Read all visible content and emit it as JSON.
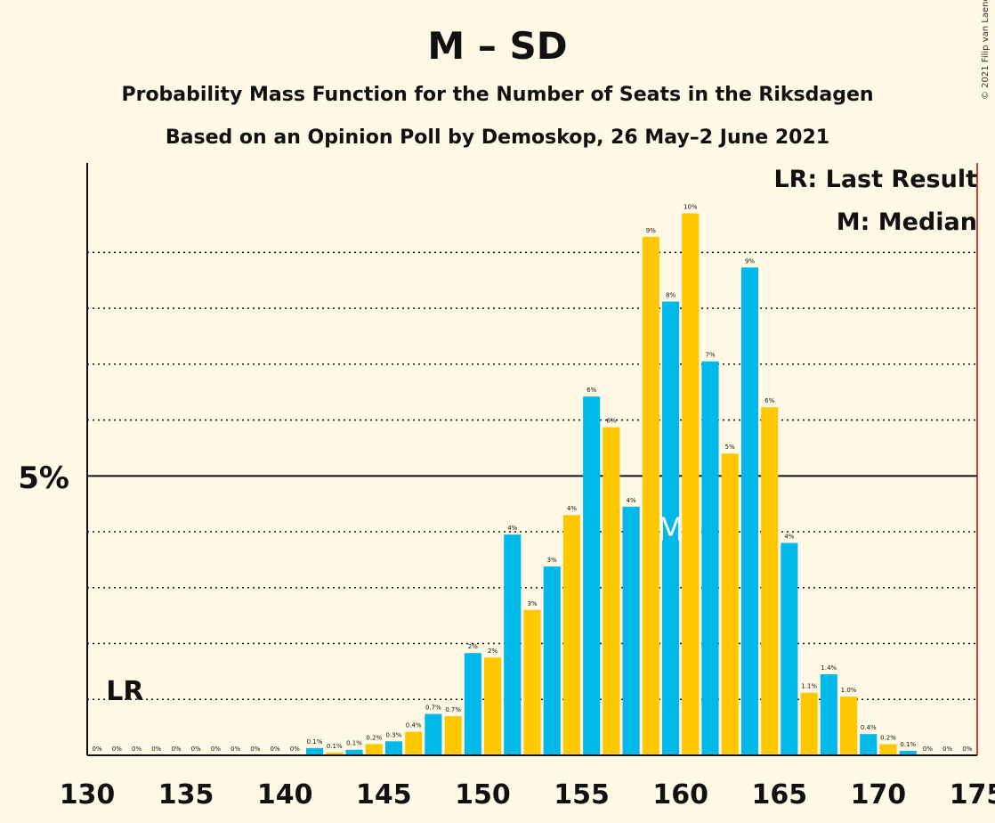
{
  "chart_data": {
    "type": "bar",
    "title": "M – SD",
    "subtitle1": "Probability Mass Function for the Number of Seats in the Riksdagen",
    "subtitle2": "Based on an Opinion Poll by Demoskop, 26 May–2 June 2021",
    "copyright": "© 2021 Filip van Laenen",
    "legend": {
      "lr": "LR: Last Result",
      "m": "M: Median",
      "placement": "top-right"
    },
    "y_major_label": "5%",
    "y_major_value": 5,
    "y_gridlines": [
      1,
      2,
      3,
      4,
      6,
      7,
      8,
      9
    ],
    "ylim": [
      0,
      10.6
    ],
    "xlim": [
      130,
      175
    ],
    "x_ticks": [
      130,
      135,
      140,
      145,
      150,
      155,
      160,
      165,
      170,
      175
    ],
    "majority_line": 175,
    "last_result": 132,
    "last_result_label": "LR",
    "median": 160,
    "median_label": "M",
    "colors": {
      "a": "#00b9e9",
      "b": "#ffc800",
      "line": "#cc0000"
    },
    "seats": [
      131,
      132,
      133,
      134,
      135,
      136,
      137,
      138,
      139,
      140,
      141,
      142,
      143,
      144,
      145,
      146,
      147,
      148,
      149,
      150,
      151,
      152,
      153,
      154,
      155,
      156,
      157,
      158,
      159,
      160,
      161,
      162,
      163,
      164,
      165,
      166,
      167,
      168,
      169,
      170,
      171,
      172,
      173,
      174,
      175
    ],
    "values": [
      0,
      0,
      0,
      0,
      0,
      0,
      0,
      0,
      0,
      0,
      0,
      0.13,
      0.05,
      0.1,
      0.2,
      0.25,
      0.42,
      0.74,
      0.7,
      1.83,
      1.75,
      3.95,
      2.6,
      3.38,
      4.3,
      6.42,
      5.87,
      4.45,
      9.28,
      8.12,
      9.7,
      7.05,
      5.4,
      8.73,
      6.23,
      3.8,
      1.12,
      1.45,
      1.05,
      0.38,
      0.2,
      0.08,
      0,
      0,
      0
    ],
    "labels": [
      "0%",
      "0%",
      "0%",
      "0%",
      "0%",
      "0%",
      "0%",
      "0%",
      "0%",
      "0%",
      "0%",
      "0.1%",
      "0.1%",
      "0.1%",
      "0.2%",
      "0.3%",
      "0.4%",
      "0.7%",
      "0.7%",
      "2%",
      "2%",
      "4%",
      "3%",
      "3%",
      "4%",
      "6%",
      "6%",
      "4%",
      "9%",
      "8%",
      "10%",
      "7%",
      "5%",
      "9%",
      "6%",
      "4%",
      "1.1%",
      "1.4%",
      "1.0%",
      "0.4%",
      "0.2%",
      "0.1%",
      "0%",
      "0%",
      "0%"
    ]
  }
}
